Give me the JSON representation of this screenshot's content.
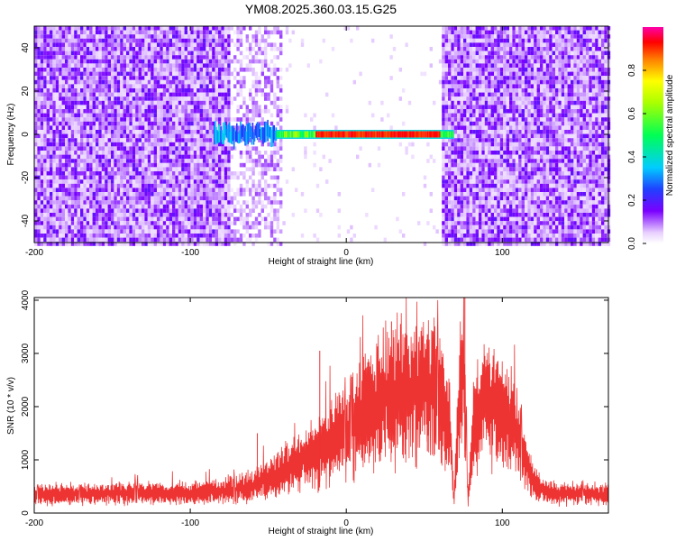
{
  "title": "YM08.2025.360.03.15.G25",
  "chart_data": [
    {
      "type": "heatmap",
      "xlabel": "Height of straight line (km)",
      "ylabel": "Frequency (Hz)",
      "xlim": [
        -200,
        168
      ],
      "ylim": [
        -50,
        50
      ],
      "xticks": [
        -200,
        -100,
        0,
        100
      ],
      "yticks": [
        -40,
        -20,
        0,
        20,
        40
      ],
      "grid": false,
      "colorbar": {
        "label": "Normalized spectral amplitude",
        "ticks": [
          "0.0",
          "0.2",
          "0.4",
          "0.6",
          "0.8"
        ],
        "range": [
          0,
          1
        ]
      },
      "features": [
        {
          "name": "background noise",
          "x_ranges": [
            [
              -200,
              -75
            ],
            [
              60,
              168
            ]
          ],
          "amplitude": 0.12
        },
        {
          "name": "patchy noise",
          "x_ranges": [
            [
              -75,
              -42
            ]
          ],
          "amplitude": 0.08
        },
        {
          "name": "quiet band",
          "x_ranges": [
            [
              -42,
              60
            ]
          ],
          "amplitude": 0.02
        },
        {
          "name": "tone band",
          "x_range": [
            -85,
            68
          ],
          "frequency": 0,
          "peak_amplitude": 0.95
        }
      ]
    },
    {
      "type": "line",
      "xlabel": "Height of straight line (km)",
      "ylabel": "SNR (10 * v/v)",
      "xlim": [
        -200,
        168
      ],
      "ylim": [
        0,
        4050
      ],
      "xticks": [
        -200,
        -100,
        0,
        100
      ],
      "yticks": [
        0,
        1000,
        2000,
        3000,
        4000
      ],
      "color": "#ee3333",
      "grid": false,
      "envelope": {
        "x": [
          -200,
          -150,
          -100,
          -80,
          -70,
          -60,
          -55,
          -45,
          -35,
          -25,
          -15,
          -5,
          5,
          15,
          25,
          35,
          45,
          50,
          55,
          60,
          63,
          66,
          69,
          72,
          75,
          78,
          82,
          90,
          100,
          110,
          118,
          125,
          140,
          168
        ],
        "y": [
          350,
          360,
          380,
          420,
          450,
          520,
          620,
          700,
          900,
          1000,
          1250,
          1500,
          1700,
          1950,
          2200,
          2350,
          2300,
          2300,
          2350,
          2200,
          1800,
          1800,
          250,
          1900,
          3000,
          250,
          1800,
          2150,
          1900,
          1400,
          700,
          420,
          360,
          360
        ]
      },
      "spikes": [
        {
          "x": -57,
          "y": 1500
        },
        {
          "x": -17,
          "y": 3050
        },
        {
          "x": 29,
          "y": 3600
        },
        {
          "x": 52,
          "y": 3350
        },
        {
          "x": 76,
          "y": 4050
        }
      ]
    }
  ]
}
